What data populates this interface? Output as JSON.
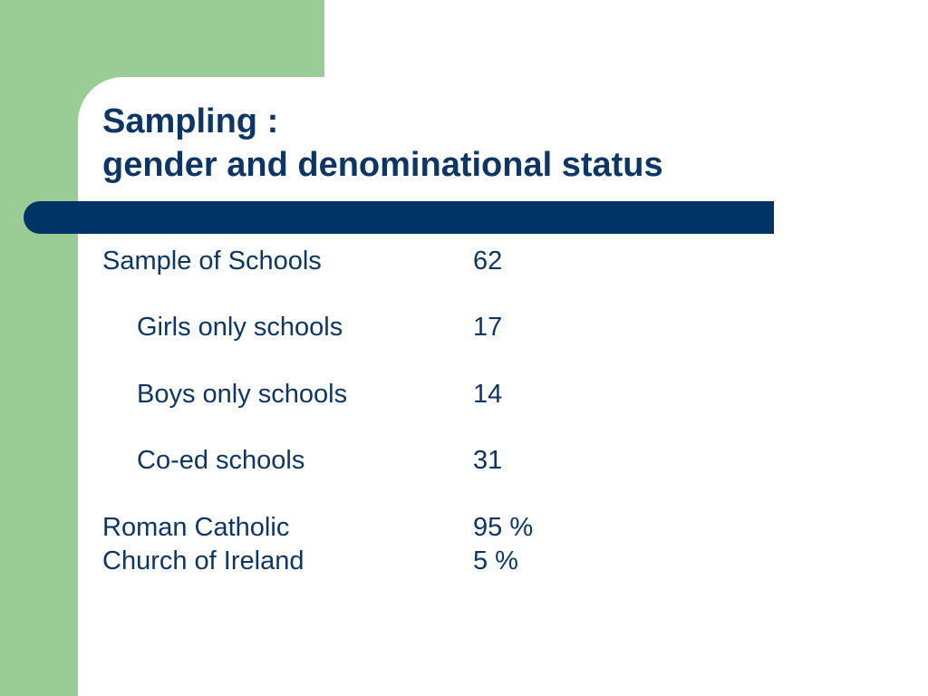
{
  "title": {
    "line1": "Sampling :",
    "line2": "gender and denominational status"
  },
  "rows": [
    {
      "label": "Sample of Schools",
      "value": "62"
    },
    {
      "label": "Girls only schools",
      "value": "17"
    },
    {
      "label": "Boys only schools",
      "value": "14"
    },
    {
      "label": "Co-ed schools",
      "value": "31"
    },
    {
      "label": "Roman Catholic",
      "value": "95 %"
    },
    {
      "label": "Church of Ireland",
      "value": "5 %"
    }
  ],
  "colors": {
    "accent_green": "#9acd96",
    "title_blue": "#0c3668",
    "rule_blue": "#003366",
    "background": "#ffffff"
  }
}
